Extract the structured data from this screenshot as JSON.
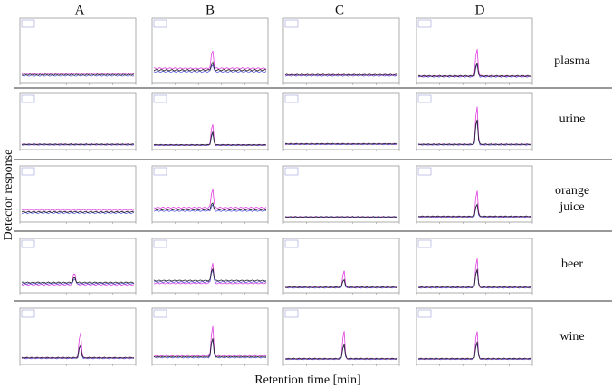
{
  "columns": [
    "A",
    "B",
    "C",
    "D"
  ],
  "rows": [
    [
      "plasma"
    ],
    [
      "urine"
    ],
    [
      "orange",
      "juice"
    ],
    [
      "beer"
    ],
    [
      "wine"
    ]
  ],
  "y_label": "Detector response",
  "x_label": "Retention time  [min]"
}
